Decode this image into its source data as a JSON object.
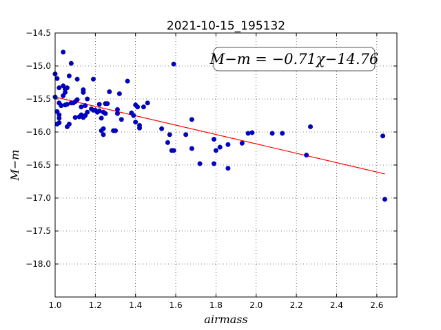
{
  "chart_data": {
    "type": "scatter",
    "title": "2021-10-15_195132",
    "xlabel": "airmass",
    "ylabel": "M−m",
    "xlim": [
      1.0,
      2.7
    ],
    "ylim": [
      -18.5,
      -14.5
    ],
    "y_inverted": true,
    "grid": true,
    "x_ticks": [
      1.0,
      1.2,
      1.4,
      1.6,
      1.8,
      2.0,
      2.2,
      2.4,
      2.6
    ],
    "x_tick_labels": [
      "1.0",
      "1.2",
      "1.4",
      "1.6",
      "1.8",
      "2.0",
      "2.2",
      "2.4",
      "2.6"
    ],
    "y_ticks": [
      -14.5,
      -15.0,
      -15.5,
      -16.0,
      -16.5,
      -17.0,
      -17.5,
      -18.0
    ],
    "y_tick_labels": [
      "−14.5",
      "−15.0",
      "−15.5",
      "−16.0",
      "−16.5",
      "−17.0",
      "−17.5",
      "−18.0"
    ],
    "annotation": "M−m = −0.71χ−14.76",
    "colors": {
      "points": "#0000cc",
      "fit": "#ff0000"
    },
    "fit": {
      "slope": -0.71,
      "intercept": -14.76,
      "x_range": [
        1.0,
        2.64
      ]
    },
    "series": [
      {
        "x": [
          1.0,
          1.0,
          1.01,
          1.01,
          1.01,
          1.02,
          1.02,
          1.02,
          1.02,
          1.02,
          1.03,
          1.03,
          1.04,
          1.04,
          1.04,
          1.05,
          1.05,
          1.05,
          1.06,
          1.06,
          1.06,
          1.07,
          1.07,
          1.08,
          1.08,
          1.09,
          1.1,
          1.1,
          1.11,
          1.11,
          1.12,
          1.13,
          1.13,
          1.14,
          1.14,
          1.14,
          1.15,
          1.15,
          1.16,
          1.16,
          1.18,
          1.19,
          1.19,
          1.2,
          1.21,
          1.22,
          1.22,
          1.23,
          1.23,
          1.24,
          1.24,
          1.24,
          1.25,
          1.25,
          1.26,
          1.27,
          1.29,
          1.3,
          1.31,
          1.31,
          1.32,
          1.33,
          1.36,
          1.38,
          1.39,
          1.4,
          1.4,
          1.41,
          1.42,
          1.42,
          1.44,
          1.46,
          1.53,
          1.56,
          1.57,
          1.58,
          1.59,
          1.59,
          1.65,
          1.68,
          1.68,
          1.72,
          1.79,
          1.79,
          1.8,
          1.82,
          1.86,
          1.86,
          1.93,
          1.96,
          1.98,
          2.08,
          2.13,
          2.25,
          2.27,
          2.63,
          2.64
        ],
        "y": [
          -15.12,
          -15.47,
          -15.69,
          -15.88,
          -15.19,
          -15.33,
          -15.56,
          -15.74,
          -15.79,
          -15.86,
          -15.6,
          -15.6,
          -15.45,
          -15.3,
          -14.79,
          -15.59,
          -15.4,
          -15.35,
          -15.92,
          -15.58,
          -15.33,
          -15.88,
          -15.15,
          -15.56,
          -14.96,
          -15.56,
          -15.78,
          -15.54,
          -15.51,
          -15.2,
          -15.77,
          -15.62,
          -15.74,
          -15.78,
          -15.4,
          -15.36,
          -15.6,
          -15.75,
          -15.5,
          -15.7,
          -15.65,
          -15.2,
          -15.67,
          -15.67,
          -15.7,
          -15.68,
          -15.58,
          -15.79,
          -15.98,
          -15.7,
          -15.95,
          -16.04,
          -15.57,
          -15.72,
          -15.57,
          -15.39,
          -15.98,
          -15.98,
          -15.66,
          -15.72,
          -15.42,
          -15.81,
          -15.23,
          -15.71,
          -15.75,
          -15.59,
          -15.85,
          -15.62,
          -15.9,
          -15.94,
          -15.62,
          -15.56,
          -15.95,
          -16.16,
          -16.04,
          -16.28,
          -14.97,
          -16.28,
          -16.04,
          -15.81,
          -16.25,
          -16.48,
          -16.11,
          -16.48,
          -16.28,
          -16.23,
          -16.55,
          -16.19,
          -16.17,
          -16.02,
          -16.01,
          -16.02,
          -16.02,
          -16.35,
          -15.92,
          -16.06,
          -17.02
        ]
      }
    ]
  }
}
